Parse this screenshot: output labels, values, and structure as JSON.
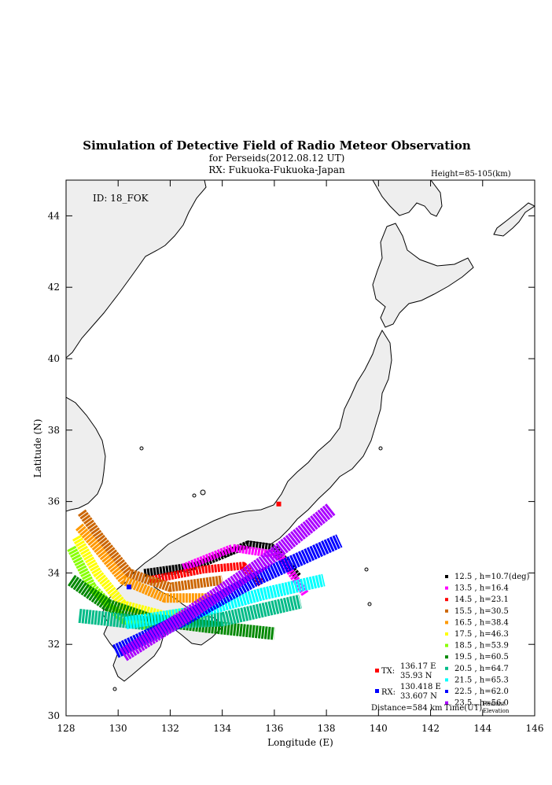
{
  "chart_data": {
    "type": "scatter",
    "title": "Simulation of Detective Field of Radio Meteor Observation",
    "subtitle": "for Perseids(2012.08.12 UT)",
    "rx_line": "RX: Fukuoka-Fukuoka-Japan",
    "height_label": "Height=85-105(km)",
    "id_label": "ID: 18_FOK",
    "xlabel": "Longitude (E)",
    "ylabel": "Latitude (N)",
    "xlim": [
      128,
      146
    ],
    "ylim": [
      30,
      45
    ],
    "xticks": [
      "128",
      "130",
      "132",
      "134",
      "136",
      "138",
      "140",
      "142",
      "144",
      "146"
    ],
    "yticks": [
      "30",
      "32",
      "34",
      "36",
      "38",
      "40",
      "42",
      "44"
    ],
    "tx": {
      "label": "TX:",
      "lon": "136.17 E",
      "lat": "35.93 N",
      "lon_value": 136.17,
      "lat_value": 35.93,
      "color": "#ff0000"
    },
    "rx": {
      "label": "RX:",
      "lon": "130.418 E",
      "lat": "33.607 N",
      "lon_value": 130.418,
      "lat_value": 33.607,
      "color": "#0000ff"
    },
    "distance": "Distance=584 km",
    "time_header": "Time(UT)",
    "radiant_header_1": "Radiant",
    "radiant_header_2": "Elevation",
    "series": [
      {
        "name": "12.5 ,  h=10.7(deg)",
        "color": "#000000"
      },
      {
        "name": "13.5 ,  h=16.4",
        "color": "#ff00ff"
      },
      {
        "name": "14.5 ,  h=23.1",
        "color": "#ff0000"
      },
      {
        "name": "15.5 ,  h=30.5",
        "color": "#cc6600"
      },
      {
        "name": "16.5 ,  h=38.4",
        "color": "#ff9900"
      },
      {
        "name": "17.5 ,  h=46.3",
        "color": "#ffff00"
      },
      {
        "name": "18.5 ,  h=53.9",
        "color": "#88ff00"
      },
      {
        "name": "19.5 ,  h=60.5",
        "color": "#008800"
      },
      {
        "name": "20.5 ,  h=64.7",
        "color": "#00bb88"
      },
      {
        "name": "21.5 ,  h=65.3",
        "color": "#00ffff"
      },
      {
        "name": "22.5 ,  h=62.0",
        "color": "#0000ff"
      },
      {
        "name": "23.5 ,  h=56.0",
        "color": "#aa00ff"
      }
    ]
  }
}
